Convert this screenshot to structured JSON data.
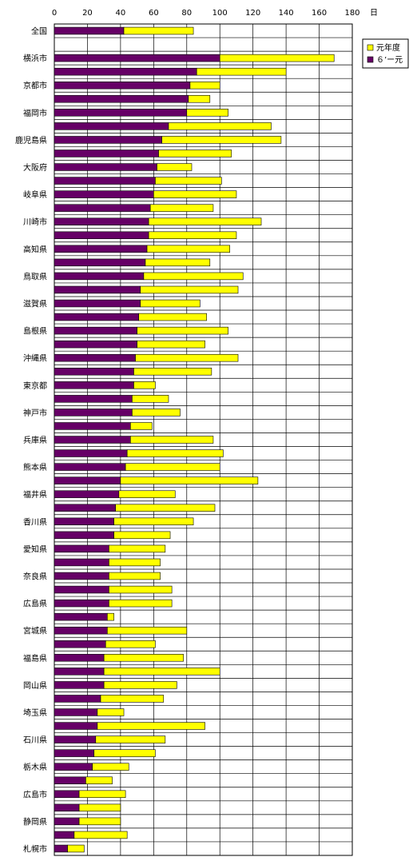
{
  "chart_data": {
    "type": "bar",
    "orientation": "horizontal",
    "stacked": true,
    "unit": "日",
    "xlim": [
      0,
      180
    ],
    "x_ticks": [
      0,
      20,
      40,
      60,
      80,
      100,
      120,
      140,
      160,
      180
    ],
    "grid": true,
    "legend_position": "top-right",
    "categories": [
      "全国",
      "",
      "横浜市",
      "",
      "京都市",
      "",
      "福岡市",
      "",
      "鹿児島県",
      "",
      "大阪府",
      "",
      "岐阜県",
      "",
      "川崎市",
      "",
      "高知県",
      "",
      "鳥取県",
      "",
      "滋賀県",
      "",
      "島根県",
      "",
      "沖縄県",
      "",
      "東京都",
      "",
      "神戸市",
      "",
      "兵庫県",
      "",
      "熊本県",
      "",
      "福井県",
      "",
      "香川県",
      "",
      "愛知県",
      "",
      "奈良県",
      "",
      "広島県",
      "",
      "宮城県",
      "",
      "福島県",
      "",
      "岡山県",
      "",
      "埼玉県",
      "",
      "石川県",
      "",
      "栃木県",
      "",
      "広島市",
      "",
      "静岡県",
      "",
      "札幌市"
    ],
    "series": [
      {
        "name": "６’ー元",
        "color": "#660066",
        "values": [
          42,
          0,
          100,
          86,
          82,
          81,
          80,
          69,
          65,
          63,
          62,
          61,
          60,
          58,
          57,
          57,
          56,
          55,
          54,
          52,
          52,
          51,
          50,
          50,
          49,
          48,
          48,
          47,
          47,
          46,
          46,
          44,
          43,
          40,
          39,
          37,
          36,
          36,
          33,
          33,
          33,
          33,
          33,
          32,
          32,
          31,
          30,
          30,
          30,
          28,
          26,
          26,
          25,
          24,
          23,
          19,
          15,
          15,
          15,
          12,
          8
        ]
      },
      {
        "name": "元年度",
        "color": "#ffff00",
        "values": [
          42,
          0,
          69,
          54,
          18,
          13,
          25,
          62,
          72,
          44,
          21,
          40,
          50,
          38,
          68,
          53,
          50,
          39,
          60,
          59,
          36,
          41,
          55,
          41,
          62,
          47,
          13,
          22,
          29,
          13,
          50,
          58,
          57,
          83,
          34,
          60,
          48,
          34,
          34,
          31,
          31,
          38,
          38,
          4,
          48,
          30,
          48,
          70,
          44,
          38,
          16,
          65,
          42,
          37,
          22,
          16,
          28,
          25,
          25,
          32,
          10
        ]
      }
    ]
  }
}
